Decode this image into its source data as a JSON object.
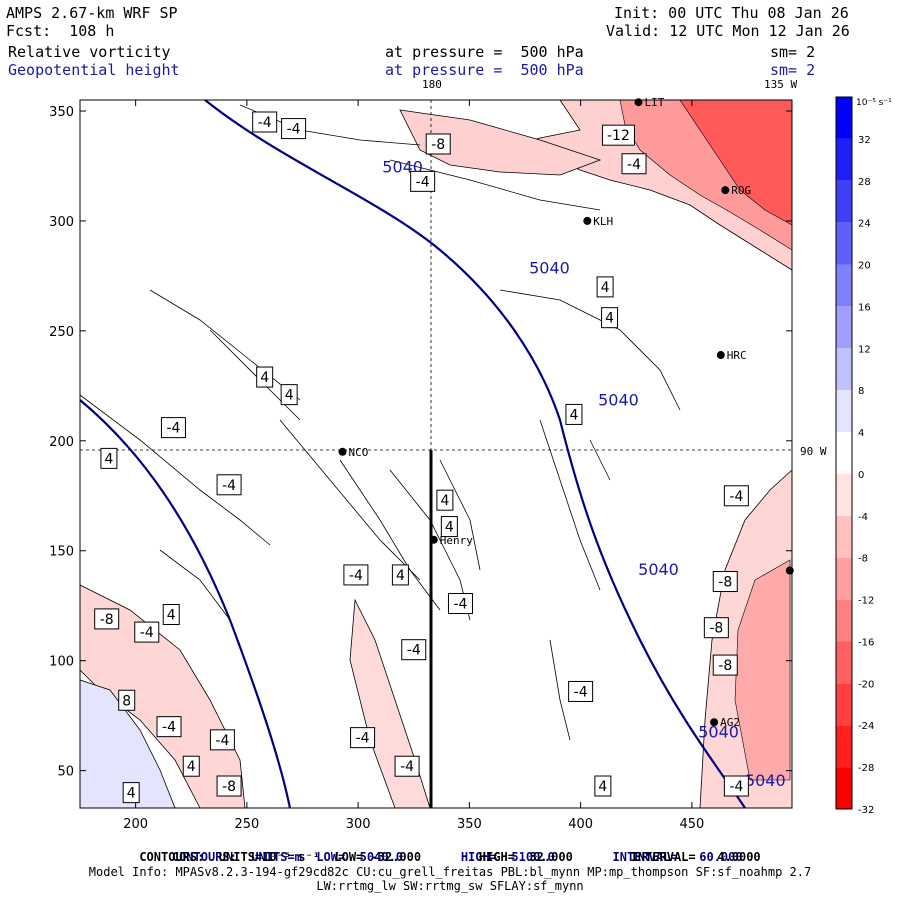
{
  "header": {
    "model": "AMPS 2.67-km WRF SP",
    "forecast": "Fcst:  108 h",
    "init": "Init: 00 UTC Thu 08 Jan 26",
    "valid": "Valid: 12 UTC Mon 12 Jan 26",
    "field1": "Relative vorticity",
    "field2": "Geopotential height",
    "pressure1": "at pressure =  500 hPa",
    "pressure2": "at pressure =  500 hPa",
    "sm1": "sm= 2",
    "sm2": "sm= 2"
  },
  "map_labels": {
    "lon_top_180": "180",
    "lon_top_135w": "135 W",
    "lon_right_90w": "90 W"
  },
  "axes": {
    "x_ticks": [
      200,
      250,
      300,
      350,
      400,
      450
    ],
    "y_ticks": [
      50,
      100,
      150,
      200,
      250,
      300,
      350
    ],
    "x_range": [
      175,
      495
    ],
    "y_range": [
      33,
      355
    ]
  },
  "colorbar": {
    "unit_label": "10⁻⁵ s⁻¹",
    "ticks": [
      "32",
      "28",
      "24",
      "20",
      "16",
      "12",
      "8",
      "4",
      "0",
      "-4",
      "-8",
      "-12",
      "-16",
      "-20",
      "-24",
      "-28",
      "-32"
    ],
    "colors": [
      "#0000ff",
      "#1f1ff8",
      "#3f3ff8",
      "#5f5ffa",
      "#8080fb",
      "#a0a0fc",
      "#c0c0fd",
      "#e4e4ff",
      "#ffffff",
      "#ffe4e4",
      "#ffc0c0",
      "#ffa0a0",
      "#ff8080",
      "#ff6060",
      "#ff4040",
      "#ff2020",
      "#ff0000"
    ]
  },
  "stations": [
    {
      "name": "LIT",
      "x": 426,
      "y": 354
    },
    {
      "name": "ROG",
      "x": 465,
      "y": 314
    },
    {
      "name": "KLH",
      "x": 403,
      "y": 300
    },
    {
      "name": "HRC",
      "x": 463,
      "y": 239
    },
    {
      "name": "NCO",
      "x": 293,
      "y": 195
    },
    {
      "name": "Henry",
      "x": 334,
      "y": 155
    },
    {
      "name": "AG2",
      "x": 460,
      "y": 72
    },
    {
      "name": "",
      "x": 494,
      "y": 141
    }
  ],
  "height_labels": [
    {
      "text": "5040",
      "x": 320,
      "y": 322
    },
    {
      "text": "5040",
      "x": 386,
      "y": 276
    },
    {
      "text": "5040",
      "x": 417,
      "y": 216
    },
    {
      "text": "5040",
      "x": 435,
      "y": 139
    },
    {
      "text": "5040",
      "x": 462,
      "y": 65
    },
    {
      "text": "5040",
      "x": 483,
      "y": 43
    }
  ],
  "vort_labels": [
    {
      "text": "-4",
      "x": 258,
      "y": 345
    },
    {
      "text": "-4",
      "x": 271,
      "y": 342
    },
    {
      "text": "-8",
      "x": 336,
      "y": 335
    },
    {
      "text": "-12",
      "x": 417,
      "y": 339
    },
    {
      "text": "-4",
      "x": 424,
      "y": 326
    },
    {
      "text": "-4",
      "x": 329,
      "y": 318
    },
    {
      "text": "4",
      "x": 411,
      "y": 270
    },
    {
      "text": "4",
      "x": 413,
      "y": 256
    },
    {
      "text": "4",
      "x": 397,
      "y": 212
    },
    {
      "text": "4",
      "x": 258,
      "y": 229
    },
    {
      "text": "4",
      "x": 269,
      "y": 221
    },
    {
      "text": "-4",
      "x": 217,
      "y": 206
    },
    {
      "text": "4",
      "x": 188,
      "y": 192
    },
    {
      "text": "-4",
      "x": 242,
      "y": 180
    },
    {
      "text": "4",
      "x": 339,
      "y": 173
    },
    {
      "text": "4",
      "x": 341,
      "y": 161
    },
    {
      "text": "-4",
      "x": 299,
      "y": 139
    },
    {
      "text": "4",
      "x": 319,
      "y": 139
    },
    {
      "text": "-4",
      "x": 346,
      "y": 126
    },
    {
      "text": "-4",
      "x": 470,
      "y": 175
    },
    {
      "text": "-8",
      "x": 465,
      "y": 136
    },
    {
      "text": "-8",
      "x": 461,
      "y": 115
    },
    {
      "text": "-8",
      "x": 465,
      "y": 98
    },
    {
      "text": "4",
      "x": 216,
      "y": 121
    },
    {
      "text": "-8",
      "x": 187,
      "y": 119
    },
    {
      "text": "-4",
      "x": 205,
      "y": 113
    },
    {
      "text": "-4",
      "x": 325,
      "y": 105
    },
    {
      "text": "-4",
      "x": 400,
      "y": 86
    },
    {
      "text": "8",
      "x": 196,
      "y": 82
    },
    {
      "text": "-4",
      "x": 215,
      "y": 70
    },
    {
      "text": "-4",
      "x": 239,
      "y": 64
    },
    {
      "text": "-4",
      "x": 302,
      "y": 65
    },
    {
      "text": "4",
      "x": 225,
      "y": 52
    },
    {
      "text": "-4",
      "x": 322,
      "y": 52
    },
    {
      "text": "-8",
      "x": 242,
      "y": 43
    },
    {
      "text": "4",
      "x": 198,
      "y": 40
    },
    {
      "text": "4",
      "x": 410,
      "y": 43
    },
    {
      "text": "-4",
      "x": 470,
      "y": 43
    }
  ],
  "footer": {
    "line1_a": "CONTOURS:  UNITS=m  LOW=  5040.0",
    "line1_b": "HIGH=  5100.0",
    "line1_c": "INTERVAL=   60.000",
    "line2": "CONTOURS:  UNITS=10⁻⁵ s⁻¹  LOW= -32.000        HIGH=  32.000        INTERVAL=   4.0000",
    "line3": "Model Info: MPASv8.2.3-194-gf29cd82c CU:cu_grell_freitas PBL:bl_mynn MP:mp_thompson SF:sf_noahmp 2.7",
    "line4": "LW:rrtmg_lw SW:rrtmg_sw SFLAY:sf_mynn"
  }
}
